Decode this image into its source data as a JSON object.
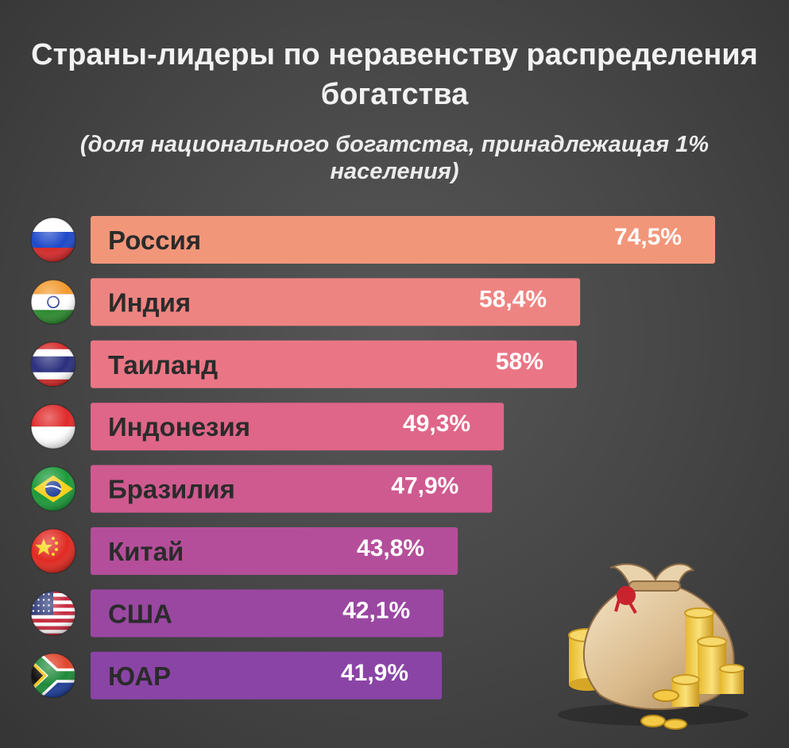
{
  "chart_data": {
    "type": "bar",
    "orientation": "horizontal",
    "title": "Страны-лидеры по неравенству распределения богатства",
    "subtitle": "(доля национального богатства, принадлежащая 1% населения)",
    "categories": [
      "Россия",
      "Индия",
      "Таиланд",
      "Индонезия",
      "Бразилия",
      "Китай",
      "США",
      "ЮАР"
    ],
    "values": [
      74.5,
      58.4,
      58,
      49.3,
      47.9,
      43.8,
      42.1,
      41.9
    ],
    "value_labels": [
      "74,5%",
      "58,4%",
      "58%",
      "49,3%",
      "47,9%",
      "43,8%",
      "42,1%",
      "41,9%"
    ],
    "flags": [
      "russia-flag-icon",
      "india-flag-icon",
      "thailand-flag-icon",
      "indonesia-flag-icon",
      "brazil-flag-icon",
      "china-flag-icon",
      "usa-flag-icon",
      "south-africa-flag-icon"
    ],
    "bar_colors": [
      "#f2967a",
      "#ee8481",
      "#ea7685",
      "#df6688",
      "#cf5a8f",
      "#b44e9a",
      "#9a47a2",
      "#8a44a6"
    ],
    "decoration": "money-bag-with-coins-icon"
  }
}
